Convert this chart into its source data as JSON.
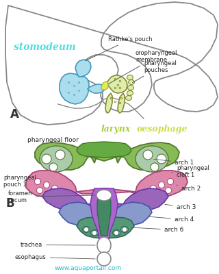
{
  "bg_color": "#ffffff",
  "label_A": "A",
  "label_B": "B",
  "text_stomodeum": "stomodeum",
  "text_stomodeum_color": "#55dddd",
  "text_rathkes": "Rathke's pouch",
  "text_oro": "oropharyngeal\nmembrane",
  "text_pharyngeal_pouches": "pharyngeal\npouches",
  "text_larynx": "larynx",
  "text_larynx_color": "#aacc44",
  "text_oesophage": "oesophage",
  "text_oesophage_color": "#ccdd44",
  "text_pharyngeal_floor": "pharyngeal floor",
  "text_arch1": "arch 1",
  "text_arch2": "arch 2",
  "text_arch3": "arch 3",
  "text_arch4": "arch 4",
  "text_arch6": "arch 6",
  "text_pharyngeal_cleft1": "pharyngeal\ncleft 1",
  "text_pharyngeal_pouch1": "pharyngeal\npouch 1",
  "text_foramen": "foramen\ncecum",
  "text_trachea": "trachea",
  "text_esophagus": "esophagus",
  "text_aquaportail": "www.aquaportail.com",
  "text_aquaportail_color": "#22bbcc",
  "color_head_outline": "#888888",
  "color_stomodeum_fill": "#aaddee",
  "color_pharyngeal_fill": "#ddeeaa",
  "color_oro_yellow": "#ddee55",
  "color_arch1_green": "#88bb55",
  "color_arch1_light": "#aaccaa",
  "color_arch2_pink": "#dd99bb",
  "color_arch3_purple": "#9966bb",
  "color_arch4_blue": "#8899cc",
  "color_arch6_teal": "#559988",
  "color_arch6_light": "#77bbaa",
  "color_center_green": "#448866"
}
